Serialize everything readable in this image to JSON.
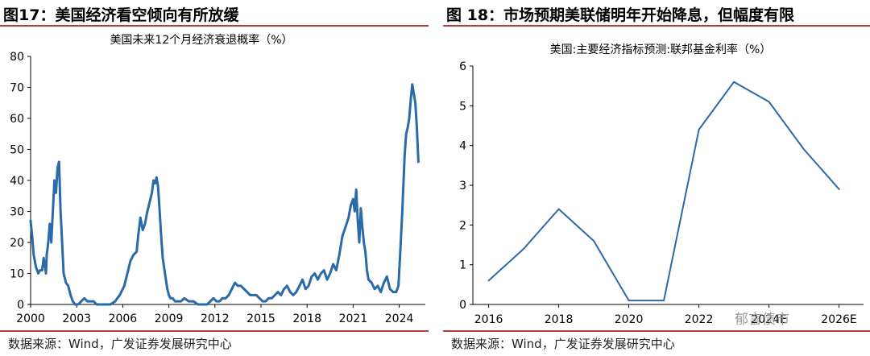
{
  "charts": {
    "left": {
      "figure_title": "图17：美国经济看空倾向有所放缓",
      "source": "数据来源：Wind，广发证券发展研究中心"
    },
    "right": {
      "figure_title": "图 18：市场预期美联储明年开始降息，但幅度有限",
      "source": "数据来源：Wind，广发证券发展研究中心"
    }
  },
  "watermark": "郁言债市",
  "chart_data": [
    {
      "type": "line",
      "title": "美国未来12个月经济衰退概率（%）",
      "xlabel": "",
      "ylabel": "",
      "ylim": [
        0,
        80
      ],
      "yticks": [
        "0",
        "10",
        "20",
        "30",
        "40",
        "50",
        "60",
        "70",
        "80"
      ],
      "xticks": [
        "2000",
        "2003",
        "2006",
        "2009",
        "2012",
        "2015",
        "2018",
        "2021",
        "2024"
      ],
      "xlim": [
        2000,
        2025.7
      ],
      "color": "#2a6aa8",
      "series": [
        {
          "name": "美国未来12个月经济衰退概率",
          "x": [
            2000.0,
            2000.1,
            2000.2,
            2000.35,
            2000.5,
            2000.6,
            2000.75,
            2000.85,
            2001.0,
            2001.05,
            2001.15,
            2001.25,
            2001.35,
            2001.45,
            2001.55,
            2001.65,
            2001.75,
            2001.85,
            2001.95,
            2002.05,
            2002.15,
            2002.3,
            2002.45,
            2002.6,
            2002.75,
            2002.9,
            2003.1,
            2003.3,
            2003.5,
            2003.7,
            2003.9,
            2004.1,
            2004.3,
            2004.6,
            2004.9,
            2005.2,
            2005.5,
            2005.8,
            2006.1,
            2006.3,
            2006.5,
            2006.7,
            2006.9,
            2007.0,
            2007.15,
            2007.3,
            2007.45,
            2007.6,
            2007.75,
            2007.9,
            2008.0,
            2008.1,
            2008.2,
            2008.3,
            2008.4,
            2008.5,
            2008.6,
            2008.75,
            2008.9,
            2009.0,
            2009.1,
            2009.25,
            2009.4,
            2009.6,
            2009.8,
            2010.0,
            2010.3,
            2010.6,
            2010.9,
            2011.2,
            2011.5,
            2011.7,
            2011.9,
            2012.1,
            2012.3,
            2012.5,
            2012.7,
            2012.9,
            2013.1,
            2013.3,
            2013.5,
            2013.7,
            2013.9,
            2014.1,
            2014.3,
            2014.5,
            2014.7,
            2014.9,
            2015.1,
            2015.3,
            2015.5,
            2015.7,
            2015.9,
            2016.1,
            2016.3,
            2016.5,
            2016.7,
            2016.9,
            2017.1,
            2017.3,
            2017.5,
            2017.7,
            2017.9,
            2018.1,
            2018.3,
            2018.5,
            2018.7,
            2018.9,
            2019.1,
            2019.3,
            2019.5,
            2019.7,
            2019.9,
            2020.1,
            2020.3,
            2020.5,
            2020.7,
            2020.85,
            2021.0,
            2021.1,
            2021.2,
            2021.3,
            2021.4,
            2021.5,
            2021.6,
            2021.7,
            2021.8,
            2021.9,
            2022.0,
            2022.2,
            2022.4,
            2022.6,
            2022.8,
            2023.0,
            2023.2,
            2023.4,
            2023.6,
            2023.8,
            2023.95,
            2024.05,
            2024.2,
            2024.35,
            2024.45,
            2024.55,
            2024.65,
            2024.75,
            2024.85,
            2024.95,
            2025.05,
            2025.15,
            2025.25
          ],
          "values": [
            27,
            22,
            16,
            12,
            10,
            11,
            11,
            15,
            10,
            16,
            20,
            26,
            20,
            30,
            40,
            36,
            44,
            46,
            30,
            20,
            10,
            7,
            6,
            3,
            1,
            0,
            0,
            1,
            2,
            1,
            1,
            1,
            0,
            0,
            0,
            0,
            1,
            3,
            6,
            10,
            14,
            16,
            17,
            22,
            28,
            24,
            26,
            30,
            33,
            36,
            40,
            39,
            41,
            38,
            30,
            22,
            15,
            10,
            5,
            3,
            2,
            2,
            1,
            1,
            1,
            2,
            1,
            1,
            0,
            0,
            0,
            1,
            2,
            1,
            1,
            2,
            2,
            3,
            5,
            7,
            6,
            6,
            5,
            4,
            3,
            3,
            3,
            2,
            1,
            1,
            2,
            2,
            3,
            4,
            3,
            5,
            6,
            4,
            3,
            4,
            6,
            8,
            5,
            6,
            9,
            10,
            8,
            10,
            11,
            8,
            10,
            13,
            11,
            16,
            22,
            25,
            28,
            32,
            34,
            30,
            37,
            27,
            20,
            31,
            25,
            20,
            17,
            11,
            8,
            7,
            5,
            6,
            4,
            7,
            9,
            5,
            4,
            4,
            6,
            15,
            30,
            48,
            55,
            57,
            60,
            66,
            71,
            68,
            65,
            57,
            46
          ]
        }
      ]
    },
    {
      "type": "line",
      "title": "美国:主要经济指标预测:联邦基金利率（%）",
      "xlabel": "",
      "ylabel": "",
      "ylim": [
        0,
        6
      ],
      "yticks": [
        "0",
        "1",
        "2",
        "3",
        "4",
        "5",
        "6"
      ],
      "xticks": [
        "2016",
        "2018",
        "2020",
        "2022",
        "2024E",
        "2026E"
      ],
      "xlim": [
        2015.55,
        2026.7
      ],
      "color": "#2a6aa8",
      "series": [
        {
          "name": "联邦基金利率",
          "x": [
            2016,
            2017,
            2018,
            2019,
            2020,
            2021,
            2022,
            2023,
            2024,
            2025,
            2026
          ],
          "values": [
            0.6,
            1.4,
            2.4,
            1.6,
            0.1,
            0.1,
            4.4,
            5.6,
            5.1,
            3.9,
            2.9
          ]
        }
      ]
    }
  ]
}
